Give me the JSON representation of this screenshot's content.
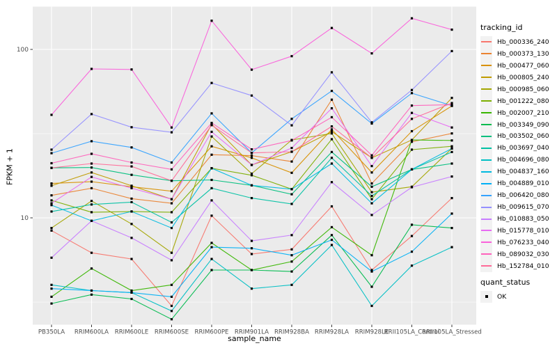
{
  "figure": {
    "background": "#FFFFFF",
    "panel_background": "#EBEBEB",
    "grid_color": "#FFFFFF",
    "axis_text_color": "#4D4D4D",
    "tick_mark_color": "#333333"
  },
  "legend": {
    "tracking_id_title": "tracking_id",
    "quant_status_title": "quant_status",
    "quant_status_items": [
      {
        "label": "OK",
        "symbol": "black-square"
      }
    ]
  },
  "chart_data": {
    "type": "line",
    "title": "",
    "xlabel": "sample_name",
    "ylabel": "FPKM + 1",
    "y_scale": "log10",
    "y_ticks": [
      100,
      10
    ],
    "y_minor_gridlines": [
      31.6,
      3.16
    ],
    "ylim": [
      2.3,
      180
    ],
    "grid": true,
    "legend_position": "right",
    "point_shape": "filled-square",
    "point_color": "#000000",
    "categories": [
      "PB350LA",
      "RRIM600LA",
      "RRIM600LE",
      "RRIM600SE",
      "RRIM600PE",
      "RRIM901LA",
      "RRIM928BA",
      "RRIM928LA",
      "RRIM928LE",
      "RRII105LA_Control",
      "RRII105LA_Stressed"
    ],
    "series": [
      {
        "name": "Hb_000336_240",
        "color": "#F8766D",
        "values": [
          8.4,
          6.2,
          5.7,
          3.0,
          10.3,
          6.1,
          6.5,
          11.7,
          4.9,
          7.8,
          13.1
        ]
      },
      {
        "name": "Hb_000373_130",
        "color": "#EA8331",
        "values": [
          13.6,
          15.0,
          13.0,
          12.2,
          23.7,
          23.4,
          21.6,
          50.3,
          16.0,
          28.3,
          31.7
        ]
      },
      {
        "name": "Hb_000477_060",
        "color": "#D89000",
        "values": [
          16.0,
          16.4,
          15.3,
          14.4,
          26.6,
          22.7,
          18.5,
          33.5,
          18.6,
          32.7,
          46.2
        ]
      },
      {
        "name": "Hb_000805_240",
        "color": "#C09B00",
        "values": [
          15.5,
          18.6,
          15.5,
          12.9,
          36.0,
          20.6,
          24.7,
          32.5,
          22.7,
          29.0,
          51.5
        ]
      },
      {
        "name": "Hb_000985_060",
        "color": "#A3A500",
        "values": [
          8.7,
          12.6,
          9.2,
          6.2,
          30.4,
          18.3,
          29.0,
          31.7,
          14.2,
          15.3,
          25.8
        ]
      },
      {
        "name": "Hb_001222_080",
        "color": "#7CAE00",
        "values": [
          12.7,
          10.8,
          10.9,
          10.8,
          19.7,
          17.9,
          14.8,
          29.3,
          12.9,
          25.4,
          26.6
        ]
      },
      {
        "name": "Hb_002007_210",
        "color": "#39B600",
        "values": [
          3.4,
          5.0,
          3.7,
          4.0,
          7.1,
          4.9,
          5.5,
          8.8,
          6.0,
          29.0,
          28.8
        ]
      },
      {
        "name": "Hb_003349_090",
        "color": "#00BB4E",
        "values": [
          3.1,
          3.5,
          3.3,
          2.5,
          4.9,
          4.9,
          4.8,
          7.9,
          3.9,
          9.1,
          8.7
        ]
      },
      {
        "name": "Hb_003502_060",
        "color": "#00BF7D",
        "values": [
          19.8,
          19.9,
          18.0,
          16.6,
          16.8,
          15.6,
          13.8,
          24.6,
          15.3,
          19.4,
          21.0
        ]
      },
      {
        "name": "Hb_003697_040",
        "color": "#00C1A3",
        "values": [
          10.9,
          12.0,
          12.4,
          9.4,
          15.0,
          13.1,
          12.1,
          22.7,
          13.5,
          19.4,
          24.6
        ]
      },
      {
        "name": "Hb_004696_080",
        "color": "#00BFC4",
        "values": [
          4.0,
          3.7,
          3.6,
          2.8,
          5.7,
          3.8,
          4.0,
          6.9,
          3.0,
          5.2,
          6.7
        ]
      },
      {
        "name": "Hb_004837_160",
        "color": "#00BAE0",
        "values": [
          11.9,
          9.6,
          10.9,
          8.7,
          19.7,
          15.6,
          14.8,
          21.0,
          12.2,
          19.4,
          25.8
        ]
      },
      {
        "name": "Hb_004889_010",
        "color": "#00B0F6",
        "values": [
          3.8,
          3.7,
          3.6,
          3.4,
          6.7,
          6.6,
          6.0,
          7.4,
          4.8,
          6.3,
          10.6
        ]
      },
      {
        "name": "Hb_006420_080",
        "color": "#35A2FF",
        "values": [
          24.2,
          28.5,
          26.2,
          21.3,
          41.7,
          24.3,
          38.7,
          56.7,
          36.3,
          55.0,
          46.3
        ]
      },
      {
        "name": "Hb_009615_070",
        "color": "#9590FF",
        "values": [
          25.4,
          41.3,
          34.5,
          32.2,
          63.2,
          53.2,
          35.4,
          73.1,
          36.9,
          57.4,
          97.7
        ]
      },
      {
        "name": "Hb_010883_050",
        "color": "#C77CFF",
        "values": [
          5.8,
          9.6,
          7.6,
          5.6,
          12.7,
          7.3,
          7.9,
          16.3,
          10.4,
          15.2,
          17.6
        ]
      },
      {
        "name": "Hb_015778_010",
        "color": "#E76BF3",
        "values": [
          12.2,
          17.5,
          15.0,
          12.9,
          32.4,
          20.6,
          26.0,
          44.7,
          20.3,
          42.0,
          34.4
        ]
      },
      {
        "name": "Hb_076233_040",
        "color": "#FA62DB",
        "values": [
          40.9,
          76.6,
          76.0,
          34.4,
          148.0,
          75.8,
          91.2,
          134.0,
          94.7,
          153.0,
          131.0
        ]
      },
      {
        "name": "Hb_089032_030",
        "color": "#FF62BC",
        "values": [
          21.1,
          24.0,
          21.3,
          19.4,
          36.6,
          25.5,
          28.8,
          39.6,
          23.5,
          46.4,
          47.0
        ]
      },
      {
        "name": "Hb_152784_010",
        "color": "#FF6A98",
        "values": [
          19.8,
          21.0,
          20.2,
          16.6,
          35.5,
          24.3,
          24.7,
          34.9,
          22.7,
          38.7,
          48.0
        ]
      }
    ]
  }
}
